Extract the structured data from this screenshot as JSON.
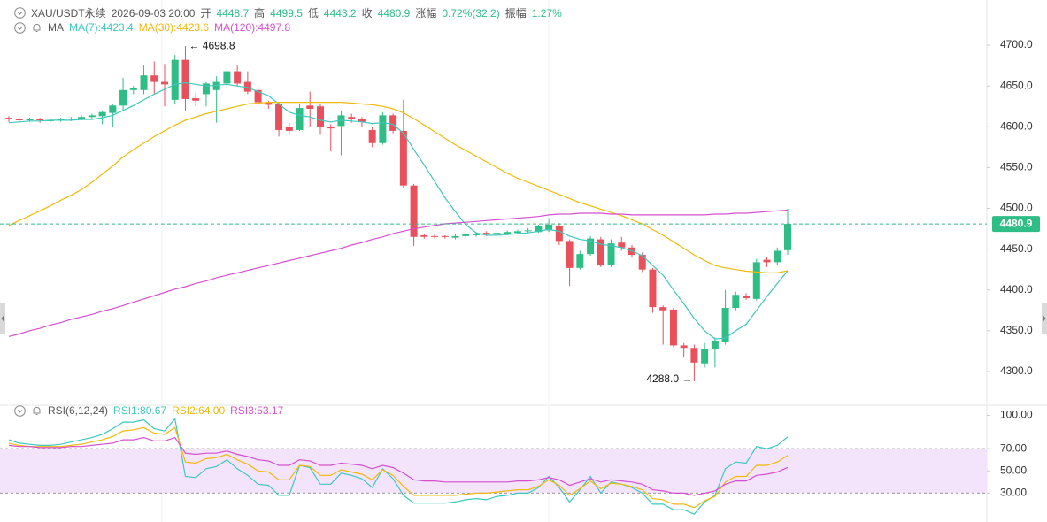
{
  "header": {
    "symbol": "XAU/USDT永续",
    "time": "2026-09-03 20:00",
    "fields": [
      {
        "label": "开",
        "value": "4448.7"
      },
      {
        "label": "高",
        "value": "4499.5"
      },
      {
        "label": "低",
        "value": "4443.2"
      },
      {
        "label": "收",
        "value": "4480.9"
      },
      {
        "label": "涨幅",
        "value": "0.72%(32.2)"
      },
      {
        "label": "振幅",
        "value": "1.27%"
      }
    ]
  },
  "chart_data": [
    {
      "type": "candlestick",
      "indicator_label": "MA",
      "up_color": "#2ebd85",
      "down_color": "#e8505b",
      "open": [
        4611,
        4609,
        4608,
        4609,
        4608,
        4608,
        4609,
        4610,
        4612,
        4613,
        4617,
        4626,
        4645,
        4645,
        4663,
        4655,
        4633,
        4682,
        4635,
        4640,
        4645,
        4653,
        4668,
        4655,
        4645,
        4630,
        4628,
        4600,
        4596,
        4626,
        4625,
        4600,
        4601,
        4612,
        4610,
        4596,
        4580,
        4614,
        4595,
        4528,
        4467,
        4466,
        4466,
        4464,
        4466,
        4467,
        4470,
        4468,
        4469,
        4470,
        4472,
        4471,
        4473,
        4478,
        4460,
        4427,
        4444,
        4462,
        4430,
        4458,
        4452,
        4443,
        4425,
        4379,
        4376,
        4332,
        4329,
        4310,
        4327,
        4336,
        4378,
        4393,
        4389,
        4437,
        4434,
        4448.7
      ],
      "high": [
        4613,
        4611,
        4611,
        4611,
        4610,
        4611,
        4612,
        4614,
        4616,
        4620,
        4628,
        4660,
        4650,
        4675,
        4680,
        4677,
        4688,
        4698.8,
        4642,
        4655,
        4662,
        4672,
        4675,
        4668,
        4650,
        4632,
        4630,
        4605,
        4628,
        4643,
        4628,
        4603,
        4620,
        4616,
        4612,
        4600,
        4618,
        4616,
        4633,
        4530,
        4469,
        4468,
        4467,
        4468,
        4470,
        4471,
        4472,
        4472,
        4473,
        4474,
        4476,
        4480,
        4488,
        4482,
        4462,
        4448,
        4466,
        4465,
        4462,
        4465,
        4455,
        4446,
        4427,
        4381,
        4378,
        4335,
        4333,
        4335,
        4342,
        4400,
        4398,
        4396,
        4438,
        4440,
        4452,
        4499.5
      ],
      "low": [
        4606,
        4606,
        4606,
        4605,
        4606,
        4606,
        4607,
        4608,
        4610,
        4603,
        4600,
        4620,
        4640,
        4640,
        4640,
        4625,
        4628,
        4620,
        4625,
        4625,
        4605,
        4648,
        4650,
        4640,
        4625,
        4622,
        4588,
        4590,
        4595,
        4600,
        4590,
        4570,
        4565,
        4605,
        4600,
        4575,
        4578,
        4592,
        4525,
        4454,
        4463,
        4463,
        4463,
        4462,
        4464,
        4465,
        4466,
        4466,
        4467,
        4468,
        4470,
        4470,
        4471,
        4455,
        4405,
        4425,
        4442,
        4428,
        4428,
        4448,
        4440,
        4422,
        4372,
        4333,
        4330,
        4318,
        4288.0,
        4305,
        4305,
        4333,
        4375,
        4388,
        4387,
        4428,
        4431,
        4443.2
      ],
      "close": [
        4609,
        4608,
        4609,
        4608,
        4608,
        4609,
        4610,
        4612,
        4614,
        4618,
        4626,
        4645,
        4647,
        4663,
        4655,
        4652,
        4682,
        4634,
        4632,
        4653,
        4655,
        4668,
        4653,
        4643,
        4630,
        4627,
        4596,
        4595,
        4623,
        4622,
        4600,
        4598,
        4614,
        4610,
        4606,
        4580,
        4614,
        4595,
        4528,
        4465,
        4465,
        4465,
        4465,
        4466,
        4468,
        4469,
        4468,
        4470,
        4471,
        4472,
        4473,
        4478,
        4480,
        4460,
        4427,
        4444,
        4463,
        4430,
        4457,
        4452,
        4443,
        4425,
        4379,
        4375,
        4332,
        4329,
        4311,
        4328,
        4338,
        4378,
        4394,
        4390,
        4434,
        4434,
        4448,
        4480.9
      ],
      "series": [
        {
          "name": "MA(7):4423.4",
          "color": "#3cc8bd",
          "values": [
            4605,
            4606,
            4607,
            4607,
            4608,
            4608,
            4608,
            4609,
            4609,
            4611,
            4614,
            4620,
            4626,
            4633,
            4640,
            4646,
            4652,
            4654,
            4652,
            4650,
            4651,
            4652,
            4650,
            4648,
            4643,
            4638,
            4628,
            4618,
            4614,
            4612,
            4608,
            4606,
            4608,
            4607,
            4606,
            4604,
            4605,
            4603,
            4592,
            4572,
            4553,
            4533,
            4513,
            4496,
            4480,
            4470,
            4467,
            4467,
            4468,
            4469,
            4470,
            4472,
            4474,
            4472,
            4466,
            4462,
            4460,
            4456,
            4454,
            4452,
            4448,
            4442,
            4430,
            4418,
            4400,
            4383,
            4365,
            4350,
            4340,
            4341,
            4350,
            4358,
            4375,
            4392,
            4408,
            4423.4
          ]
        },
        {
          "name": "MA(30):4423.6",
          "color": "#f0b90b",
          "values": [
            4479,
            4485,
            4491,
            4497,
            4503,
            4510,
            4516,
            4523,
            4532,
            4542,
            4552,
            4563,
            4572,
            4580,
            4588,
            4595,
            4602,
            4608,
            4612,
            4616,
            4619,
            4622,
            4625,
            4628,
            4629,
            4630,
            4630,
            4630,
            4630,
            4630,
            4630,
            4630,
            4630,
            4629,
            4628,
            4627,
            4625,
            4622,
            4617,
            4610,
            4602,
            4594,
            4586,
            4578,
            4571,
            4564,
            4557,
            4550,
            4543,
            4537,
            4532,
            4527,
            4522,
            4517,
            4512,
            4507,
            4503,
            4499,
            4495,
            4491,
            4486,
            4481,
            4474,
            4467,
            4459,
            4451,
            4443,
            4436,
            4430,
            4427,
            4425,
            4423,
            4422,
            4421,
            4421,
            4423.6
          ]
        },
        {
          "name": "MA(120):4497.8",
          "color": "#d54fcf",
          "values": [
            4343,
            4346,
            4350,
            4353,
            4357,
            4360,
            4364,
            4367,
            4370,
            4374,
            4377,
            4381,
            4385,
            4389,
            4393,
            4397,
            4401,
            4404,
            4408,
            4411,
            4415,
            4418,
            4421,
            4424,
            4427,
            4430,
            4433,
            4436,
            4439,
            4442,
            4445,
            4448,
            4451,
            4455,
            4458,
            4462,
            4465,
            4469,
            4472,
            4475,
            4477,
            4479,
            4481,
            4482,
            4483,
            4484,
            4485,
            4486,
            4487,
            4488,
            4489,
            4490,
            4492,
            4493,
            4493,
            4494,
            4494,
            4494,
            4493,
            4493,
            4492,
            4492,
            4492,
            4492,
            4492,
            4492,
            4492,
            4492,
            4493,
            4493,
            4494,
            4494,
            4495,
            4496,
            4497,
            4497.8
          ]
        }
      ],
      "ylim": [
        4262,
        4712
      ],
      "yticks": [
        {
          "value": 4300,
          "label": "4300.0"
        },
        {
          "value": 4350,
          "label": "4350.0"
        },
        {
          "value": 4400,
          "label": "4400.0"
        },
        {
          "value": 4450,
          "label": "4450.0"
        },
        {
          "value": 4500,
          "label": "4500.0"
        },
        {
          "value": 4550,
          "label": "4550.0"
        },
        {
          "value": 4600,
          "label": "4600.0"
        },
        {
          "value": 4650,
          "label": "4650.0"
        },
        {
          "value": 4700,
          "label": "4700.0"
        }
      ],
      "annotations": [
        {
          "text": "← 4698.8",
          "index": 17,
          "value": 4698.8
        },
        {
          "text": "4288.0 →",
          "index": 66,
          "value": 4288.0
        }
      ],
      "last_price": {
        "value": 4480.9,
        "label": "4480.9",
        "color": "#2ebd85"
      }
    },
    {
      "type": "line",
      "indicator_label": "RSI(6,12,24)",
      "series": [
        {
          "name": "RSI1:80.67",
          "color": "#3cc8bd",
          "values": [
            78,
            75,
            74,
            73,
            73,
            74,
            76,
            78,
            80,
            83,
            88,
            94,
            94,
            96,
            88,
            86,
            97,
            45,
            44,
            52,
            54,
            60,
            52,
            46,
            38,
            37,
            28,
            28,
            55,
            53,
            38,
            38,
            48,
            46,
            43,
            35,
            52,
            43,
            28,
            21,
            21,
            21,
            21,
            22,
            24,
            25,
            24,
            27,
            28,
            30,
            30,
            35,
            45,
            35,
            22,
            33,
            45,
            30,
            40,
            38,
            35,
            30,
            20,
            20,
            15,
            15,
            11,
            22,
            28,
            52,
            58,
            57,
            72,
            70,
            73,
            80.67
          ]
        },
        {
          "name": "RSI2:64.00",
          "color": "#f0b90b",
          "values": [
            75,
            73,
            72,
            72,
            72,
            72,
            73,
            74,
            76,
            78,
            81,
            86,
            87,
            89,
            84,
            83,
            89,
            58,
            57,
            61,
            62,
            65,
            60,
            56,
            50,
            49,
            42,
            42,
            55,
            54,
            46,
            46,
            51,
            49,
            47,
            42,
            51,
            46,
            36,
            28,
            28,
            28,
            28,
            28,
            29,
            30,
            30,
            31,
            32,
            33,
            33,
            36,
            42,
            37,
            28,
            34,
            41,
            34,
            39,
            38,
            36,
            33,
            25,
            24,
            20,
            20,
            17,
            23,
            27,
            40,
            45,
            45,
            55,
            55,
            58,
            64.0
          ]
        },
        {
          "name": "RSI3:53.17",
          "color": "#d54fcf",
          "values": [
            73,
            72,
            72,
            71,
            71,
            71,
            72,
            72,
            73,
            74,
            75,
            78,
            78,
            80,
            77,
            77,
            80,
            66,
            65,
            66,
            66,
            68,
            65,
            63,
            60,
            59,
            55,
            55,
            60,
            59,
            55,
            55,
            57,
            56,
            55,
            52,
            55,
            53,
            48,
            42,
            41,
            41,
            40,
            40,
            40,
            40,
            40,
            40,
            40,
            41,
            41,
            42,
            44,
            42,
            37,
            40,
            43,
            40,
            42,
            41,
            40,
            38,
            33,
            32,
            30,
            30,
            28,
            30,
            32,
            38,
            41,
            41,
            46,
            47,
            49,
            53.17
          ]
        }
      ],
      "ylim": [
        4,
        106
      ],
      "yticks": [
        {
          "value": 30,
          "label": "30.00"
        },
        {
          "value": 50,
          "label": "50.00"
        },
        {
          "value": 70,
          "label": "70.00"
        },
        {
          "value": 100,
          "label": "100.00"
        }
      ],
      "band": [
        30,
        70
      ],
      "band_color": "#f3e4fb"
    }
  ]
}
